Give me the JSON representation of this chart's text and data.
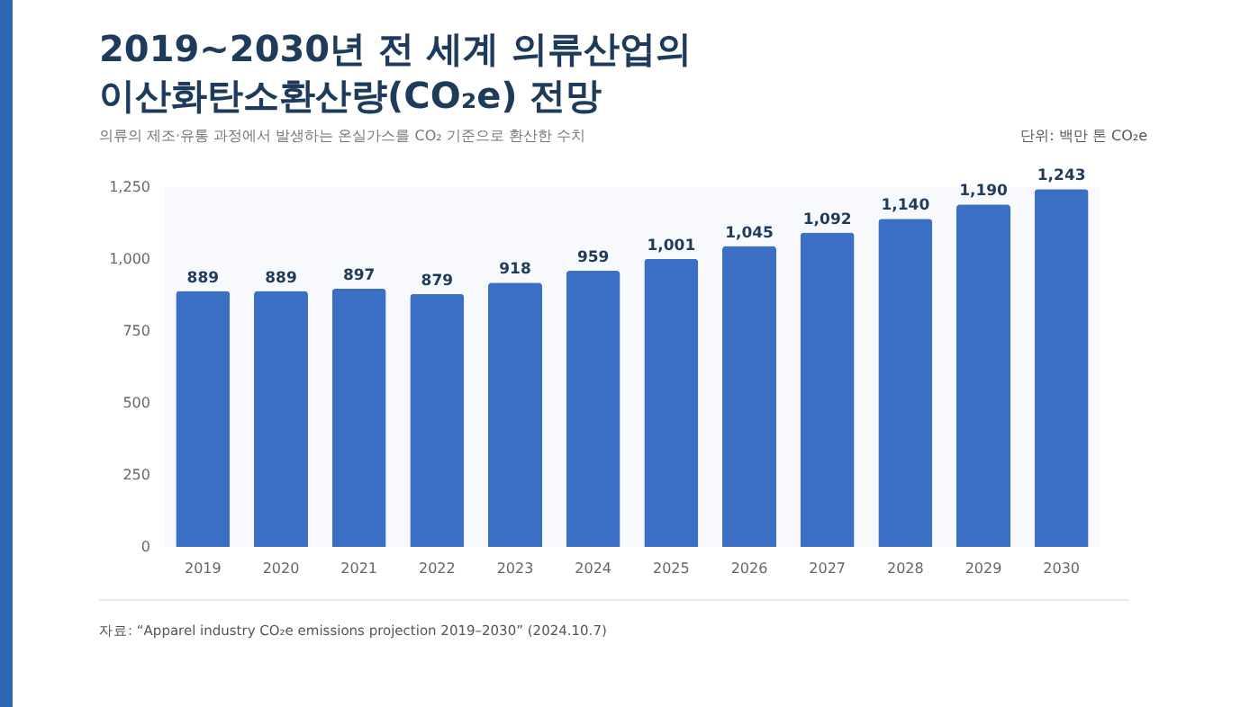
{
  "chart_data": {
    "type": "bar",
    "title": "2019~2030년 전 세계 의류산업의\n이산화탄소환산량(CO₂e) 전망",
    "subtitle": "의류의 제조·유통 과정에서 발생하는 온실가스를 CO₂ 기준으로 환산한 수치",
    "categories": [
      "2019",
      "2020",
      "2021",
      "2022",
      "2023",
      "2024",
      "2025",
      "2026",
      "2027",
      "2028",
      "2029",
      "2030"
    ],
    "values": [
      889,
      889,
      897,
      879,
      918,
      959,
      1001,
      1045,
      1092,
      1140,
      1190,
      1243
    ],
    "color": "#3a6fc4",
    "ylim": [
      0,
      1250
    ],
    "yticks": [
      0,
      250,
      500,
      750,
      {
        "value": 1000,
        "label": "1,000"
      },
      {
        "value": 1250,
        "label": "1,250"
      }
    ],
    "grid": false,
    "value_labels": [
      "889",
      "889",
      "897",
      "879",
      "918",
      "959",
      "1,001",
      "1,045",
      "1,092",
      "1,140",
      "1,190",
      "1,243"
    ],
    "annotations": [
      "단위: 백만 톤 CO₂e",
      "자료: “Apparel industry CO₂e emissions projection 2019–2030” (2024.10.7)"
    ]
  }
}
